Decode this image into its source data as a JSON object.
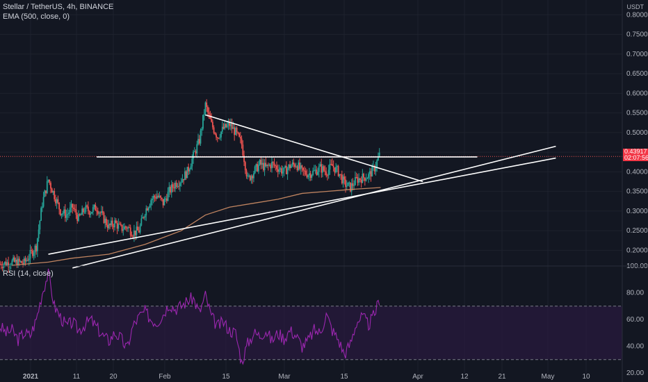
{
  "colors": {
    "background": "#131722",
    "grid": "#1e222d",
    "candle_up": "#26a69a",
    "candle_down": "#ef5350",
    "ema": "#c08460",
    "trendline": "#ffffff",
    "rsi_line": "#9c27b0",
    "rsi_band": "#2a1a3e",
    "price_tag": "#f23645"
  },
  "header": {
    "symbol_title": "Stellar / TetherUS, 4h, BINANCE",
    "indicator_title": "EMA (500, close, 0)",
    "rsi_title": "RSI (14, close)",
    "currency": "USDT"
  },
  "price_tag": {
    "price": "0.43917",
    "countdown": "02:07:56"
  },
  "chart_data": [
    {
      "type": "candlestick",
      "title": "Stellar / TetherUS, 4h, BINANCE",
      "price_axis_labels": [
        "0.80000",
        "0.75000",
        "0.70000",
        "0.65000",
        "0.60000",
        "0.55000",
        "0.50000",
        "0.45000",
        "0.40000",
        "0.35000",
        "0.30000",
        "0.25000",
        "0.20000"
      ],
      "time_axis_labels": [
        "2021",
        "11",
        "20",
        "Feb",
        "15",
        "Mar",
        "15",
        "Apr",
        "12",
        "21",
        "May",
        "10"
      ],
      "ylim": [
        0.16,
        0.82
      ],
      "last_price": 0.43917,
      "price_path": [
        [
          0,
          0.165
        ],
        [
          2,
          0.17
        ],
        [
          4,
          0.168
        ],
        [
          6,
          0.21
        ],
        [
          7,
          0.32
        ],
        [
          8,
          0.38
        ],
        [
          9,
          0.34
        ],
        [
          10,
          0.3
        ],
        [
          11,
          0.29
        ],
        [
          12,
          0.31
        ],
        [
          13,
          0.28
        ],
        [
          14,
          0.305
        ],
        [
          15,
          0.3
        ],
        [
          16,
          0.31
        ],
        [
          17,
          0.285
        ],
        [
          18,
          0.26
        ],
        [
          19,
          0.27
        ],
        [
          20,
          0.255
        ],
        [
          21,
          0.26
        ],
        [
          22,
          0.245
        ],
        [
          23,
          0.25
        ],
        [
          24,
          0.3
        ],
        [
          25,
          0.33
        ],
        [
          26,
          0.34
        ],
        [
          27,
          0.32
        ],
        [
          28,
          0.35
        ],
        [
          29,
          0.37
        ],
        [
          30,
          0.38
        ],
        [
          31,
          0.4
        ],
        [
          32,
          0.44
        ],
        [
          33,
          0.48
        ],
        [
          34,
          0.57
        ],
        [
          35,
          0.52
        ],
        [
          36,
          0.49
        ],
        [
          37,
          0.51
        ],
        [
          38,
          0.52
        ],
        [
          39,
          0.5
        ],
        [
          40,
          0.47
        ],
        [
          41,
          0.38
        ],
        [
          42,
          0.4
        ],
        [
          43,
          0.42
        ],
        [
          44,
          0.41
        ],
        [
          45,
          0.42
        ],
        [
          46,
          0.41
        ],
        [
          47,
          0.4
        ],
        [
          48,
          0.415
        ],
        [
          49,
          0.42
        ],
        [
          50,
          0.4
        ],
        [
          51,
          0.395
        ],
        [
          52,
          0.4
        ],
        [
          53,
          0.41
        ],
        [
          54,
          0.4
        ],
        [
          55,
          0.415
        ],
        [
          56,
          0.4
        ],
        [
          57,
          0.37
        ],
        [
          58,
          0.36
        ],
        [
          59,
          0.38
        ],
        [
          60,
          0.385
        ],
        [
          61,
          0.39
        ],
        [
          62,
          0.41
        ],
        [
          63,
          0.45
        ]
      ],
      "ema_path": [
        [
          2,
          0.162
        ],
        [
          8,
          0.17
        ],
        [
          12,
          0.18
        ],
        [
          18,
          0.19
        ],
        [
          24,
          0.215
        ],
        [
          30,
          0.25
        ],
        [
          34,
          0.29
        ],
        [
          38,
          0.31
        ],
        [
          42,
          0.32
        ],
        [
          46,
          0.33
        ],
        [
          50,
          0.345
        ],
        [
          54,
          0.35
        ],
        [
          58,
          0.355
        ],
        [
          63,
          0.36
        ]
      ],
      "trendlines": [
        {
          "from": [
            8,
            0.19
          ],
          "to": [
            92,
            0.435
          ]
        },
        {
          "from": [
            12,
            0.155
          ],
          "to": [
            92,
            0.465
          ]
        },
        {
          "from": [
            34,
            0.545
          ],
          "to": [
            70,
            0.375
          ]
        },
        {
          "from": [
            16,
            0.438
          ],
          "to": [
            79,
            0.438
          ]
        }
      ]
    },
    {
      "type": "line",
      "title": "RSI (14, close)",
      "axis_labels": [
        "100.00",
        "80.00",
        "60.00",
        "40.00",
        "20.00"
      ],
      "ylim": [
        20,
        100
      ],
      "overbought": 70,
      "oversold": 30,
      "rsi_path": [
        [
          0,
          55
        ],
        [
          1,
          50
        ],
        [
          2,
          52
        ],
        [
          3,
          45
        ],
        [
          4,
          50
        ],
        [
          5,
          48
        ],
        [
          6,
          60
        ],
        [
          7,
          80
        ],
        [
          8,
          95
        ],
        [
          9,
          70
        ],
        [
          10,
          62
        ],
        [
          11,
          55
        ],
        [
          12,
          58
        ],
        [
          13,
          52
        ],
        [
          14,
          56
        ],
        [
          15,
          60
        ],
        [
          16,
          54
        ],
        [
          17,
          48
        ],
        [
          18,
          44
        ],
        [
          19,
          50
        ],
        [
          20,
          46
        ],
        [
          21,
          38
        ],
        [
          22,
          55
        ],
        [
          23,
          62
        ],
        [
          24,
          66
        ],
        [
          25,
          60
        ],
        [
          26,
          58
        ],
        [
          27,
          64
        ],
        [
          28,
          72
        ],
        [
          29,
          68
        ],
        [
          30,
          70
        ],
        [
          31,
          74
        ],
        [
          32,
          76
        ],
        [
          33,
          65
        ],
        [
          34,
          78
        ],
        [
          35,
          62
        ],
        [
          36,
          55
        ],
        [
          37,
          58
        ],
        [
          38,
          52
        ],
        [
          39,
          50
        ],
        [
          40,
          28
        ],
        [
          41,
          42
        ],
        [
          42,
          50
        ],
        [
          43,
          48
        ],
        [
          44,
          52
        ],
        [
          45,
          44
        ],
        [
          46,
          50
        ],
        [
          47,
          46
        ],
        [
          48,
          52
        ],
        [
          49,
          48
        ],
        [
          50,
          40
        ],
        [
          51,
          44
        ],
        [
          52,
          52
        ],
        [
          53,
          50
        ],
        [
          54,
          64
        ],
        [
          55,
          52
        ],
        [
          56,
          45
        ],
        [
          57,
          34
        ],
        [
          58,
          42
        ],
        [
          59,
          58
        ],
        [
          60,
          62
        ],
        [
          61,
          56
        ],
        [
          62,
          64
        ],
        [
          63,
          78
        ]
      ]
    }
  ]
}
